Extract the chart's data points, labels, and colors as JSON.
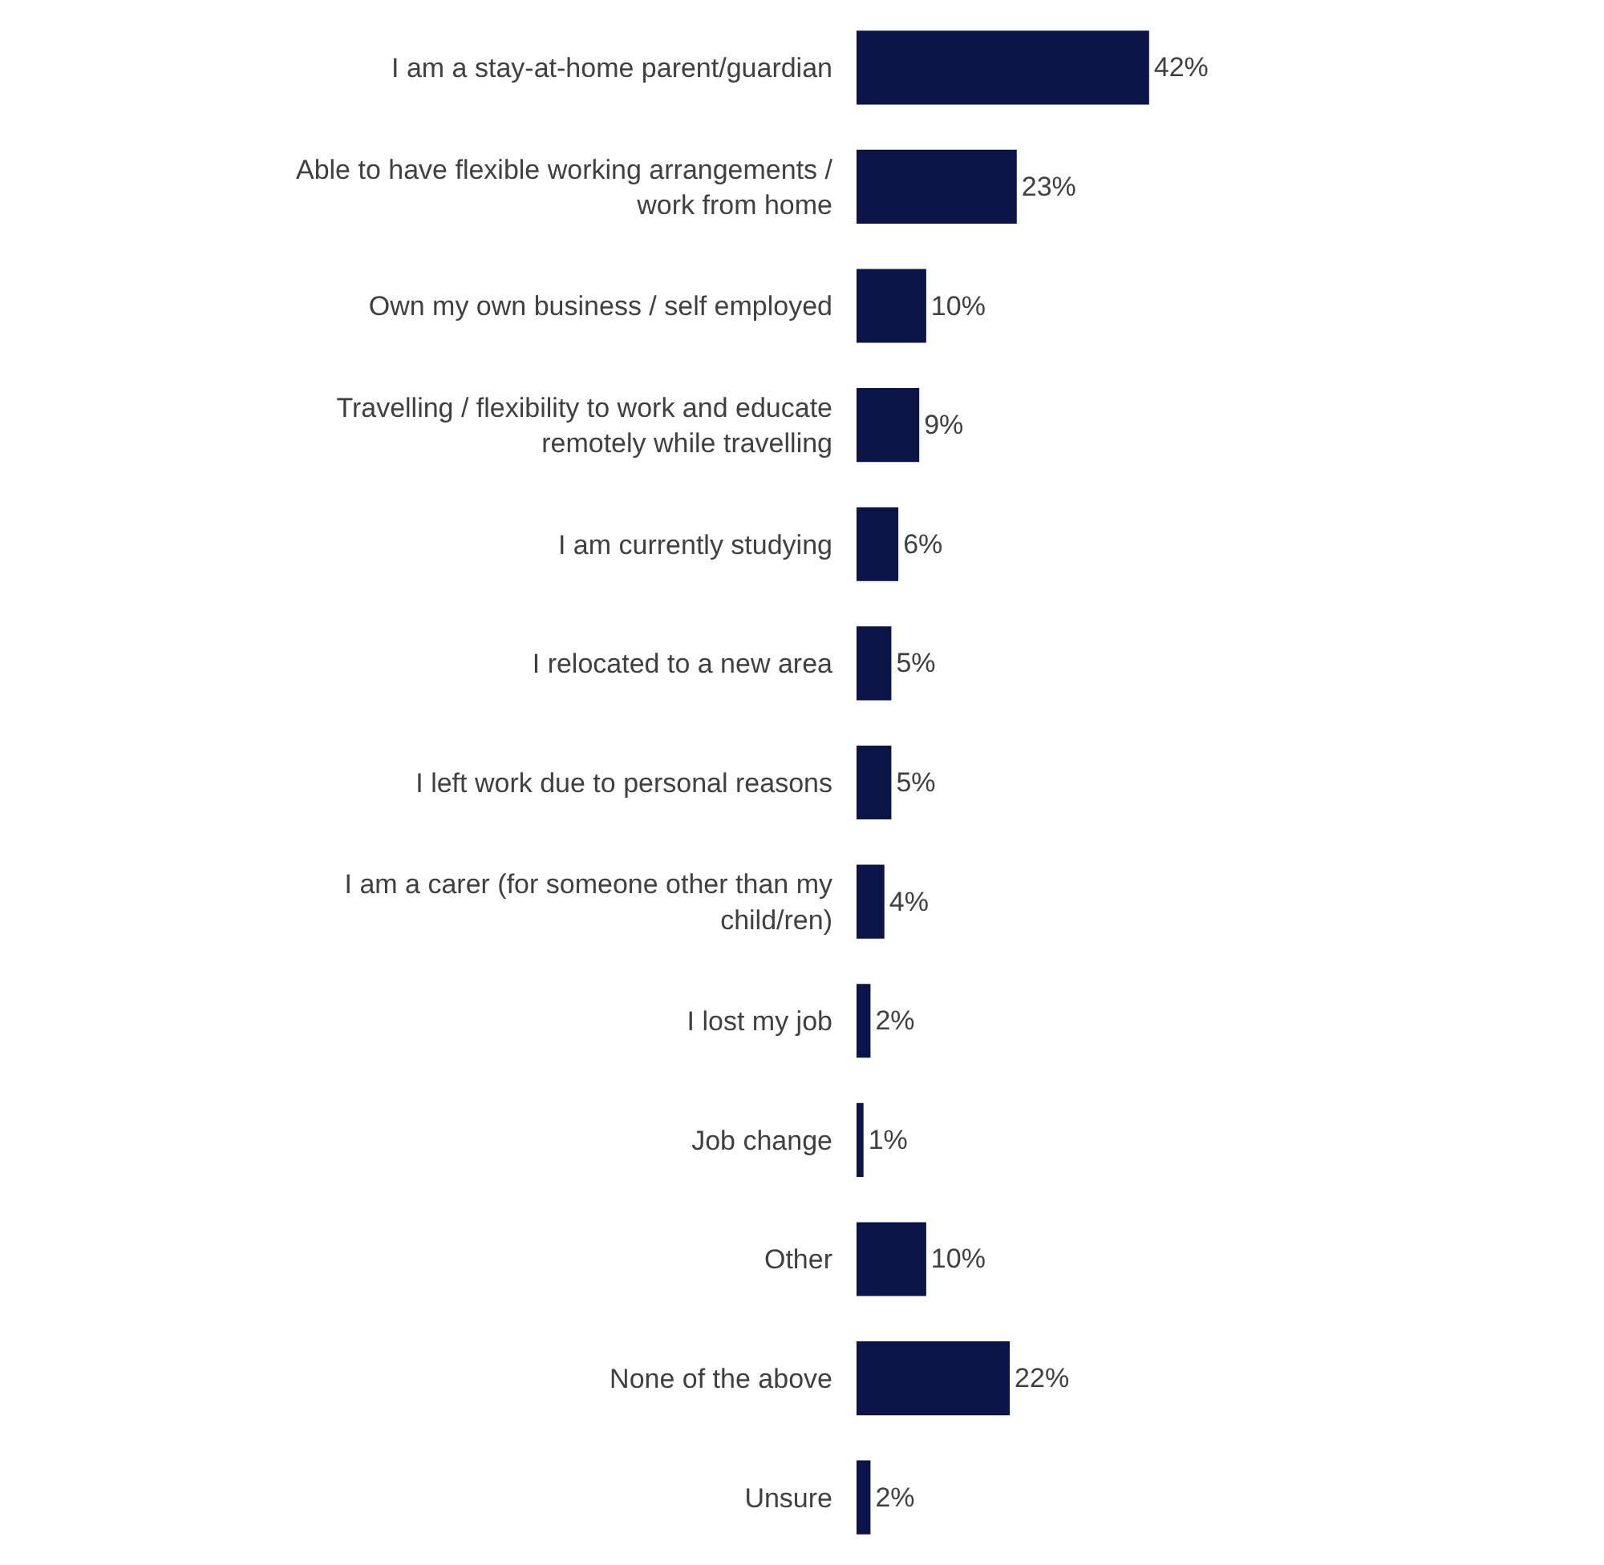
{
  "chart_data": {
    "type": "bar",
    "orientation": "horizontal",
    "color": "#0a1446",
    "categories": [
      "I am a stay-at-home parent/guardian",
      "Able to have flexible working arrangements / work from home",
      "Own my own business / self employed",
      "Travelling / flexibility to work and educate remotely while travelling",
      "I am currently studying",
      "I relocated to a new area",
      "I left work due to personal reasons",
      "I am a carer (for someone other than my child/ren)",
      "I lost my job",
      "Job change",
      "Other",
      "None of the above",
      "Unsure"
    ],
    "values": [
      42,
      23,
      10,
      9,
      6,
      5,
      5,
      4,
      2,
      1,
      10,
      22,
      2
    ],
    "value_labels": [
      "42%",
      "23%",
      "10%",
      "9%",
      "6%",
      "5%",
      "5%",
      "4%",
      "2%",
      "1%",
      "10%",
      "22%",
      "2%"
    ]
  }
}
